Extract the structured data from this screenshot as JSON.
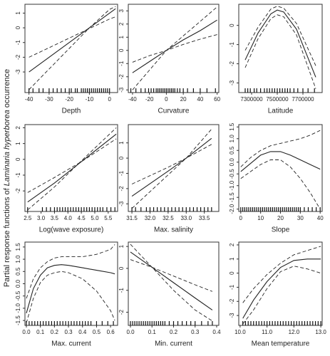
{
  "ylabel": [
    "Partial response functions of ",
    "Laminaria hyperborea",
    " occurrence"
  ],
  "chart_data": [
    {
      "type": "line",
      "xlabel": "Depth",
      "x": [
        -40,
        -30,
        -20,
        -10,
        0,
        3
      ],
      "series": [
        {
          "color": "#222",
          "dashed": false,
          "values": [
            -3.0,
            -2.0,
            -1.0,
            0,
            1.0,
            1.3
          ]
        },
        {
          "color": "#222",
          "dashed": true,
          "values": [
            -4.2,
            -2.8,
            -1.4,
            0,
            1.25,
            1.45
          ]
        },
        {
          "color": "#222",
          "dashed": true,
          "values": [
            -2.0,
            -1.35,
            -0.7,
            -0.05,
            0.6,
            0.75
          ]
        }
      ],
      "xlim": [
        -42,
        4
      ],
      "ylim": [
        -4.4,
        1.6
      ],
      "xticks": [
        -40,
        -30,
        -20,
        -10,
        0
      ],
      "yticks": [
        -3,
        -2,
        -1,
        0,
        1
      ],
      "rug": [
        -40,
        -38,
        -35,
        -33,
        -30,
        -28,
        -26,
        -24,
        -22,
        -20,
        -19,
        -17,
        -16,
        -14,
        -13,
        -12,
        -11,
        -10,
        -9,
        -8,
        -7,
        -6,
        -5,
        -4,
        -3,
        -2,
        -1,
        0
      ]
    },
    {
      "type": "line",
      "xlabel": "Curvature",
      "x": [
        -40,
        -20,
        0,
        20,
        40,
        60
      ],
      "series": [
        {
          "color": "#222",
          "dashed": false,
          "values": [
            -1.7,
            -0.85,
            0,
            0.8,
            1.5,
            2.3
          ]
        },
        {
          "color": "#222",
          "dashed": true,
          "values": [
            -3.0,
            -1.5,
            0,
            1.1,
            2.2,
            3.3
          ]
        },
        {
          "color": "#222",
          "dashed": true,
          "values": [
            -0.9,
            -0.4,
            0,
            0.45,
            0.85,
            1.2
          ]
        }
      ],
      "xlim": [
        -45,
        62
      ],
      "ylim": [
        -3.2,
        3.5
      ],
      "xticks": [
        -40,
        -20,
        0,
        20,
        40,
        60
      ],
      "yticks": [
        -3,
        -2,
        -1,
        0,
        1,
        2,
        3
      ],
      "rug": [
        -42,
        -36,
        -30,
        -25,
        -21,
        -18,
        -15,
        -12,
        -10,
        -8,
        -6,
        -4,
        -2,
        0,
        2,
        4,
        6,
        8,
        10,
        13,
        16,
        20,
        25,
        32,
        40,
        48,
        58
      ]
    },
    {
      "type": "line",
      "xlabel": "Latitude",
      "x": [
        7250000,
        7350000,
        7450000,
        7500000,
        7550000,
        7650000,
        7800000
      ],
      "series": [
        {
          "color": "#222",
          "dashed": false,
          "values": [
            -1.8,
            -0.4,
            0.6,
            0.8,
            0.7,
            -0.2,
            -2.7
          ]
        },
        {
          "color": "#222",
          "dashed": true,
          "values": [
            -1.3,
            -0.1,
            0.85,
            1.0,
            0.9,
            0.1,
            -2.1
          ]
        },
        {
          "color": "#222",
          "dashed": true,
          "values": [
            -2.2,
            -0.7,
            0.35,
            0.55,
            0.45,
            -0.5,
            -3.3
          ]
        }
      ],
      "xlim": [
        7200000,
        7850000
      ],
      "ylim": [
        -3.5,
        1.1
      ],
      "xticks": [
        7300000,
        7500000,
        7700000
      ],
      "yticks": [
        -3,
        -2,
        -1,
        0
      ],
      "rug": [
        7250000,
        7270000,
        7290000,
        7320000,
        7340000,
        7370000,
        7400000,
        7420000,
        7440000,
        7460000,
        7480000,
        7500000,
        7520000,
        7540000,
        7560000,
        7580000,
        7600000,
        7630000,
        7660000,
        7700000,
        7740000,
        7790000
      ]
    },
    {
      "type": "line",
      "xlabel": "Log(wave exposure)",
      "x": [
        2.5,
        3.5,
        4.5,
        5.8
      ],
      "series": [
        {
          "color": "#222",
          "dashed": false,
          "values": [
            -2.7,
            -1.5,
            -0.15,
            1.6
          ]
        },
        {
          "color": "#222",
          "dashed": true,
          "values": [
            -3.2,
            -1.75,
            -0.1,
            2.0
          ]
        },
        {
          "color": "#222",
          "dashed": true,
          "values": [
            -2.1,
            -1.15,
            -0.15,
            1.3
          ]
        }
      ],
      "xlim": [
        2.4,
        5.85
      ],
      "ylim": [
        -3.3,
        2.2
      ],
      "xticks": [
        2.5,
        {
          "value": 3,
          "label": "3.0"
        },
        3.5,
        {
          "value": 4,
          "label": "4.0"
        },
        4.5,
        {
          "value": 5,
          "label": "5.0"
        },
        5.5
      ],
      "yticks": [
        -2,
        -1,
        0,
        1,
        2
      ],
      "rug": [
        2.5,
        3.05,
        3.2,
        3.35,
        3.5,
        3.6,
        3.7,
        3.8,
        3.9,
        4.0,
        4.1,
        4.2,
        4.3,
        4.4,
        4.5,
        4.6,
        4.7,
        4.8,
        4.9,
        5.0,
        5.1,
        5.2,
        5.3,
        5.45,
        5.6,
        5.75
      ]
    },
    {
      "type": "line",
      "xlabel": "Max. salinity",
      "x": [
        31.5,
        32.5,
        33.0,
        33.7
      ],
      "series": [
        {
          "color": "#222",
          "dashed": false,
          "values": [
            -2.5,
            -0.85,
            0,
            1.3
          ]
        },
        {
          "color": "#222",
          "dashed": true,
          "values": [
            -3.3,
            -1.1,
            0,
            1.9
          ]
        },
        {
          "color": "#222",
          "dashed": true,
          "values": [
            -1.7,
            -0.6,
            0,
            0.9
          ]
        }
      ],
      "xlim": [
        31.4,
        33.9
      ],
      "ylim": [
        -3.5,
        2.2
      ],
      "xticks": [
        31.5,
        {
          "value": 32,
          "label": "32.0"
        },
        32.5,
        {
          "value": 33,
          "label": "33.0"
        },
        33.5
      ],
      "yticks": [
        -3,
        -2,
        -1,
        0,
        1
      ],
      "rug": [
        31.5,
        31.6,
        31.75,
        31.9,
        32.0,
        32.1,
        32.2,
        32.3,
        32.4,
        32.5,
        32.6,
        32.7,
        32.8,
        32.9,
        33.0,
        33.1,
        33.2,
        33.3,
        33.4,
        33.5,
        33.6,
        33.7
      ]
    },
    {
      "type": "line",
      "xlabel": "Slope",
      "x": [
        0,
        5,
        10,
        15,
        20,
        25,
        30,
        35,
        40
      ],
      "series": [
        {
          "color": "#222",
          "dashed": false,
          "values": [
            -0.4,
            -0.05,
            0.3,
            0.45,
            0.45,
            0.3,
            0.1,
            -0.1,
            -0.3
          ]
        },
        {
          "color": "#222",
          "dashed": true,
          "values": [
            -0.2,
            0.2,
            0.5,
            0.7,
            0.8,
            0.9,
            1.0,
            1.15,
            1.35
          ]
        },
        {
          "color": "#222",
          "dashed": true,
          "values": [
            -0.7,
            -0.4,
            -0.1,
            0.1,
            0.1,
            -0.2,
            -0.7,
            -1.3,
            -2.0
          ]
        }
      ],
      "xlim": [
        -1,
        41
      ],
      "ylim": [
        -2.1,
        1.6
      ],
      "xticks": [
        0,
        10,
        20,
        30,
        40
      ],
      "yticks": [
        {
          "value": -2,
          "label": "-2.0"
        },
        -1.5,
        {
          "value": -1,
          "label": "-1.0"
        },
        -0.5,
        {
          "value": 0,
          "label": "0.0"
        },
        0.5,
        {
          "value": 1,
          "label": "1.0"
        },
        1.5
      ],
      "rug": [
        0,
        1,
        2,
        3,
        4,
        5,
        6,
        7,
        8,
        9,
        10,
        11,
        12,
        13,
        14,
        15,
        16,
        17,
        18,
        19,
        20,
        21,
        22,
        23,
        24,
        25,
        26,
        27,
        28,
        29,
        30,
        32,
        34,
        36,
        38,
        40
      ]
    },
    {
      "type": "line",
      "xlabel": "Max. current",
      "x": [
        0,
        0.05,
        0.1,
        0.15,
        0.2,
        0.25,
        0.3,
        0.4,
        0.5,
        0.6,
        0.63
      ],
      "series": [
        {
          "color": "#222",
          "dashed": false,
          "values": [
            -1.2,
            -0.2,
            0.35,
            0.65,
            0.75,
            0.78,
            0.75,
            0.65,
            0.55,
            0.45,
            0.4
          ]
        },
        {
          "color": "#222",
          "dashed": true,
          "values": [
            -0.6,
            0.2,
            0.65,
            0.9,
            1.05,
            1.1,
            1.1,
            1.1,
            1.2,
            1.4,
            1.6
          ]
        },
        {
          "color": "#222",
          "dashed": true,
          "values": [
            -1.6,
            -0.6,
            0.05,
            0.35,
            0.45,
            0.5,
            0.45,
            0.2,
            -0.3,
            -1.1,
            -1.5
          ]
        }
      ],
      "xlim": [
        -0.01,
        0.65
      ],
      "ylim": [
        -1.7,
        1.7
      ],
      "xticks": [
        {
          "value": 0,
          "label": "0.0"
        },
        0.1,
        0.2,
        0.3,
        0.4,
        0.5,
        0.6
      ],
      "yticks": [
        -1.5,
        {
          "value": -1,
          "label": "-1.0"
        },
        -0.5,
        {
          "value": 0,
          "label": "0.0"
        },
        0.5,
        {
          "value": 1,
          "label": "1.0"
        },
        1.5
      ],
      "rug": [
        0,
        0.02,
        0.04,
        0.06,
        0.08,
        0.1,
        0.12,
        0.14,
        0.16,
        0.18,
        0.2,
        0.22,
        0.24,
        0.26,
        0.28,
        0.3,
        0.32,
        0.34,
        0.36,
        0.38,
        0.4,
        0.42,
        0.44,
        0.46,
        0.5,
        0.54,
        0.58,
        0.62
      ]
    },
    {
      "type": "line",
      "xlabel": "Min. current",
      "x": [
        0,
        0.1,
        0.2,
        0.3,
        0.38
      ],
      "series": [
        {
          "color": "#222",
          "dashed": false,
          "values": [
            0.75,
            0.05,
            -0.65,
            -1.35,
            -1.9
          ]
        },
        {
          "color": "#222",
          "dashed": true,
          "values": [
            1.1,
            0.05,
            -1.0,
            -1.9,
            -2.4
          ]
        },
        {
          "color": "#222",
          "dashed": true,
          "values": [
            0.4,
            0.05,
            -0.35,
            -0.75,
            -1.05
          ]
        }
      ],
      "xlim": [
        -0.01,
        0.41
      ],
      "ylim": [
        -2.6,
        1.2
      ],
      "xticks": [
        {
          "value": 0,
          "label": "0.0"
        },
        0.1,
        0.2,
        0.3,
        0.4
      ],
      "yticks": [
        -2,
        -1,
        0,
        1
      ],
      "rug": [
        0,
        0.01,
        0.02,
        0.03,
        0.04,
        0.05,
        0.06,
        0.07,
        0.08,
        0.09,
        0.1,
        0.11,
        0.12,
        0.13,
        0.14,
        0.15,
        0.16,
        0.18,
        0.2,
        0.22,
        0.24,
        0.26,
        0.28,
        0.3,
        0.33,
        0.36,
        0.38
      ]
    },
    {
      "type": "line",
      "xlabel": "Mean temperature",
      "x": [
        10.1,
        10.5,
        11,
        11.5,
        12,
        12.5,
        13
      ],
      "series": [
        {
          "color": "#222",
          "dashed": false,
          "values": [
            -3.2,
            -1.9,
            -0.6,
            0.4,
            0.9,
            1.0,
            1.0
          ]
        },
        {
          "color": "#222",
          "dashed": true,
          "values": [
            -2.1,
            -1.1,
            -0.1,
            0.7,
            1.3,
            1.6,
            1.9
          ]
        },
        {
          "color": "#222",
          "dashed": true,
          "values": [
            -3.6,
            -2.6,
            -1.1,
            0.1,
            0.5,
            0.3,
            0.0
          ]
        }
      ],
      "xlim": [
        9.95,
        13.05
      ],
      "ylim": [
        -3.7,
        2.2
      ],
      "xticks": [
        {
          "value": 10,
          "label": "10.0"
        },
        {
          "value": 11,
          "label": "11.0"
        },
        {
          "value": 12,
          "label": "12.0"
        },
        {
          "value": 13,
          "label": "13.0"
        }
      ],
      "yticks": [
        -3,
        -2,
        -1,
        0,
        1,
        2
      ],
      "rug": [
        10.1,
        10.2,
        10.3,
        10.4,
        10.5,
        10.6,
        10.7,
        10.8,
        10.9,
        11.0,
        11.1,
        11.2,
        11.3,
        11.4,
        11.5,
        11.6,
        11.7,
        11.8,
        11.9,
        12.0,
        12.1,
        12.2,
        12.3,
        12.4,
        12.5,
        12.6,
        12.7,
        12.8,
        12.9,
        13.0
      ]
    }
  ]
}
